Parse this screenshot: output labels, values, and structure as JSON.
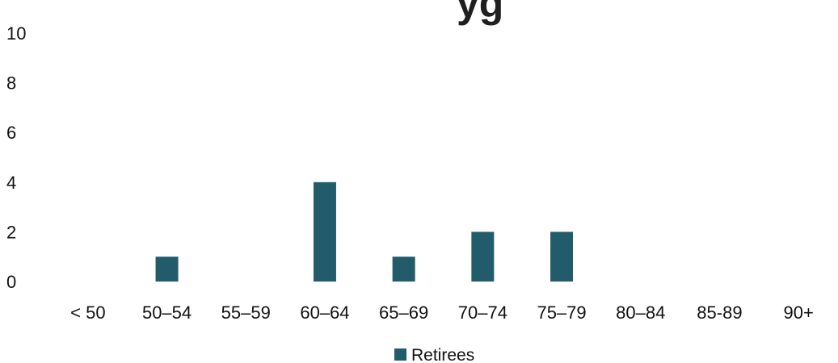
{
  "chart_data": {
    "type": "bar",
    "title": "",
    "title_visible_fragment": "yg",
    "xlabel": "",
    "ylabel": "",
    "categories": [
      "< 50",
      "50–54",
      "55–59",
      "60–64",
      "65–69",
      "70–74",
      "75–79",
      "80–84",
      "85-89",
      "90+"
    ],
    "series": [
      {
        "name": "Retirees",
        "values": [
          0,
          1,
          0,
          4,
          1,
          2,
          2,
          0,
          0,
          0
        ],
        "color": "#225b6a"
      }
    ],
    "ylim": [
      0,
      10
    ],
    "yticks": [
      0,
      2,
      4,
      6,
      8,
      10
    ],
    "grid": false,
    "legend": "bottom-center"
  }
}
